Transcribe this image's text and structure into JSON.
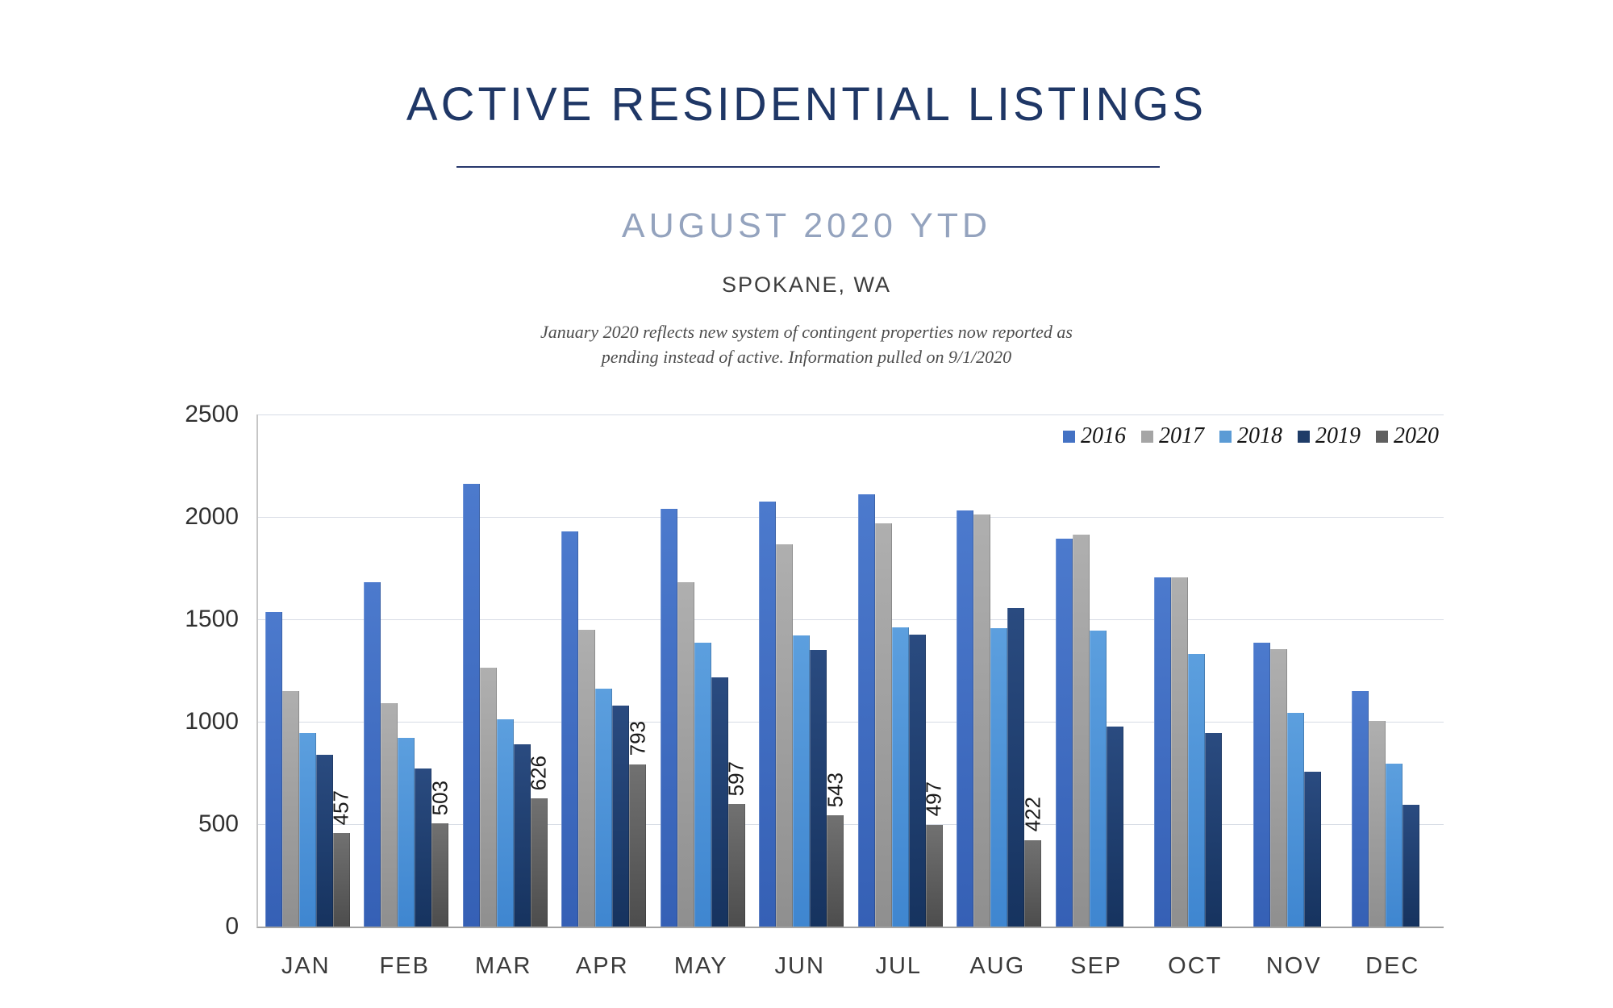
{
  "header": {
    "title": "ACTIVE RESIDENTIAL LISTINGS",
    "subtitle": "AUGUST 2020 YTD",
    "location": "SPOKANE, WA",
    "note_line1": "January 2020 reflects new system of contingent properties now reported as",
    "note_line2": "pending instead of active.  Information pulled on 9/1/2020"
  },
  "colors": {
    "title_text": "#1F3766",
    "subtitle_text": "#94A3BE",
    "gridline": "#D7DCE5",
    "axis_text": "#303030"
  },
  "chart_data": {
    "type": "bar",
    "title": "Active Residential Listings by month, 2016-2020",
    "categories": [
      "JAN",
      "FEB",
      "MAR",
      "APR",
      "MAY",
      "JUN",
      "JUL",
      "AUG",
      "SEP",
      "OCT",
      "NOV",
      "DEC"
    ],
    "series": [
      {
        "name": "2016",
        "legend_color": "#4472C4",
        "color_top": "#4C7ACD",
        "color_bottom": "#3560B5",
        "values": [
          1535,
          1680,
          2160,
          1930,
          2040,
          2075,
          2110,
          2030,
          1895,
          1705,
          1385,
          1150
        ],
        "show_labels": false
      },
      {
        "name": "2017",
        "legend_color": "#A5A5A5",
        "color_top": "#AFAFAF",
        "color_bottom": "#8F8F8F",
        "values": [
          1150,
          1090,
          1265,
          1450,
          1680,
          1865,
          1970,
          2010,
          1915,
          1705,
          1355,
          1005
        ],
        "show_labels": false
      },
      {
        "name": "2018",
        "legend_color": "#5B9BD5",
        "color_top": "#5C9FDE",
        "color_bottom": "#3F86D0",
        "values": [
          945,
          920,
          1010,
          1160,
          1385,
          1420,
          1460,
          1455,
          1445,
          1330,
          1045,
          795
        ],
        "show_labels": false
      },
      {
        "name": "2019",
        "legend_color": "#1F3C68",
        "color_top": "#2A4B80",
        "color_bottom": "#16335F",
        "values": [
          840,
          770,
          890,
          1080,
          1215,
          1350,
          1425,
          1555,
          975,
          945,
          755,
          595
        ],
        "show_labels": false
      },
      {
        "name": "2020",
        "legend_color": "#5F5F5F",
        "color_top": "#717171",
        "color_bottom": "#4D4D4D",
        "values": [
          457,
          503,
          626,
          793,
          597,
          543,
          497,
          422,
          null,
          null,
          null,
          null
        ],
        "show_labels": true
      }
    ],
    "ylim": [
      0,
      2500
    ],
    "yticks": [
      0,
      500,
      1000,
      1500,
      2000,
      2500
    ],
    "ytick_labels": [
      "0",
      "500",
      "1000",
      "1500",
      "2000",
      "2500"
    ],
    "grid": true,
    "legend_position": "top-right-inside"
  }
}
